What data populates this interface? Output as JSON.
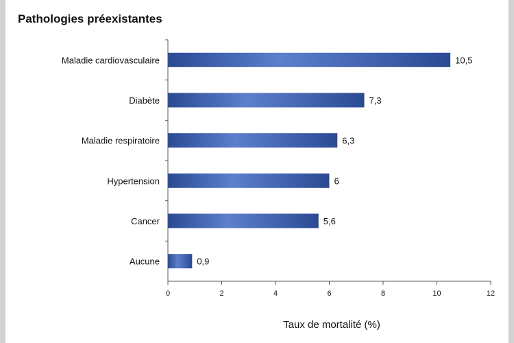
{
  "chart_data": {
    "type": "bar",
    "orientation": "horizontal",
    "title": "Pathologies préexistantes",
    "xlabel": "Taux de mortalité (%)",
    "ylabel": "",
    "categories": [
      "Maladie cardiovasculaire",
      "Diabète",
      "Maladie respiratoire",
      "Hypertension",
      "Cancer",
      "Aucune"
    ],
    "values": [
      10.5,
      7.3,
      6.3,
      6,
      5.6,
      0.9
    ],
    "value_labels": [
      "10,5",
      "7,3",
      "6,3",
      "6",
      "5,6",
      "0,9"
    ],
    "xlim": [
      0,
      12
    ],
    "xticks": [
      0,
      2,
      4,
      6,
      8,
      10,
      12
    ],
    "xtick_labels": [
      "0",
      "2",
      "4",
      "6",
      "8",
      "10",
      "12"
    ],
    "grid": false,
    "legend": "none",
    "bar_color": "#2a4a94",
    "bar_highlight": "#5d7fcc"
  }
}
